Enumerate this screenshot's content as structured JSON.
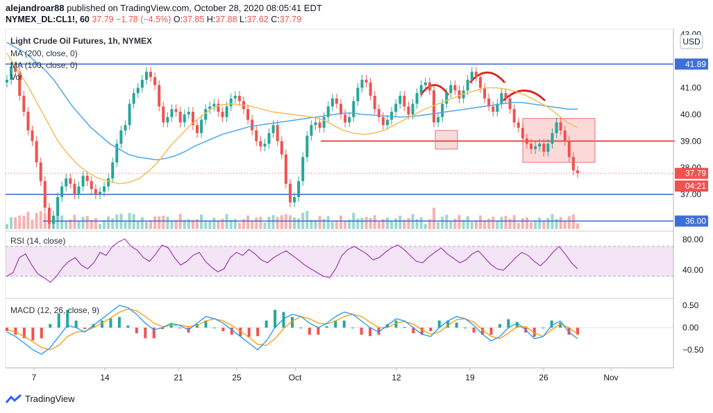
{
  "header": {
    "author": "alejandroar88",
    "published": "published on TradingView.com, October 28, 2020 08:05:41 EDT",
    "symbol": "NYMEX_DL:CL1!, 60",
    "last": "37.79",
    "change": "−1.78 (−4.5%)",
    "o_label": "O:",
    "o": "37.85",
    "h_label": "H:",
    "h": "37.88",
    "l_label": "L:",
    "l": "37.62",
    "c_label": "C:",
    "c": "37.79"
  },
  "legend": {
    "title": "Light Crude Oil Futures, 1h, NYMEX",
    "ma200": "MA (200, close, 0)",
    "ma100": "MA (100, close, 0)",
    "vol": "Vol"
  },
  "currency": "USD",
  "footer": {
    "brand": "TradingView"
  },
  "colors": {
    "up": "#26a69a",
    "down": "#ef5350",
    "ma200": "#4aa8e8",
    "ma100": "#f4be55",
    "level": "#3f6fd6",
    "neckline": "#e53935",
    "rsi": "#9c27b0",
    "macd": "#2196f3",
    "signal": "#ff9800"
  },
  "chart_data": [
    {
      "type": "line",
      "title": "Light Crude Oil Futures, 1h, NYMEX",
      "x_ticks": [
        "7",
        "14",
        "21",
        "25",
        "Oct",
        "12",
        "19",
        "26",
        "Nov"
      ],
      "y_ticks": [
        43.0,
        41.0,
        40.0,
        39.0,
        38.0,
        37.0
      ],
      "ylim": [
        35.7,
        43.2
      ],
      "price_labels": [
        {
          "label": "41.89",
          "value": 41.89,
          "kind": "level"
        },
        {
          "label": "37.79",
          "value": 37.79,
          "kind": "last"
        },
        {
          "label": "04:21",
          "value": 37.3,
          "kind": "countdown"
        },
        {
          "label": "36.00",
          "value": 36.0,
          "kind": "level"
        }
      ],
      "horizontal_levels": [
        41.89,
        37.0,
        36.0
      ],
      "neckline": 39.0,
      "close": [
        41.3,
        41.8,
        41.6,
        40.7,
        40.1,
        39.4,
        39.0,
        38.2,
        37.5,
        36.5,
        35.9,
        36.2,
        36.9,
        37.3,
        37.6,
        37.4,
        37.0,
        37.3,
        37.7,
        37.5,
        37.2,
        37.0,
        37.1,
        37.3,
        37.6,
        38.2,
        38.9,
        39.4,
        39.6,
        40.4,
        40.8,
        41.0,
        41.3,
        41.6,
        41.4,
        41.1,
        40.3,
        39.7,
        39.9,
        40.2,
        40.1,
        39.7,
        40.0,
        40.1,
        39.6,
        39.3,
        39.8,
        40.2,
        40.3,
        40.4,
        40.1,
        39.9,
        40.3,
        40.6,
        40.7,
        40.5,
        40.2,
        39.8,
        39.4,
        39.0,
        38.8,
        38.9,
        39.3,
        39.6,
        39.0,
        38.5,
        37.4,
        36.7,
        36.9,
        37.5,
        38.4,
        39.2,
        39.6,
        39.7,
        39.5,
        39.9,
        40.3,
        40.6,
        40.4,
        40.0,
        39.7,
        39.9,
        40.5,
        41.0,
        41.3,
        41.2,
        40.7,
        40.2,
        39.9,
        39.6,
        39.8,
        40.1,
        40.4,
        40.7,
        40.3,
        40.0,
        40.4,
        40.8,
        41.1,
        41.2,
        40.9,
        39.7,
        39.9,
        40.4,
        40.8,
        41.1,
        40.9,
        40.6,
        40.9,
        41.3,
        41.6,
        41.4,
        41.0,
        40.6,
        40.3,
        40.1,
        40.4,
        40.8,
        40.6,
        40.2,
        39.7,
        39.5,
        39.1,
        38.9,
        38.7,
        38.8,
        38.9,
        38.6,
        38.9,
        39.3,
        39.7,
        39.4,
        39.0,
        38.4,
        37.9,
        37.8
      ],
      "ma200": [
        42.7,
        42.5,
        42.3,
        42.0,
        41.7,
        41.3,
        40.8,
        40.3,
        39.9,
        39.5,
        39.2,
        38.9,
        38.7,
        38.5,
        38.4,
        38.35,
        38.3,
        38.35,
        38.45,
        38.6,
        38.8,
        38.95,
        39.1,
        39.25,
        39.35,
        39.45,
        39.55,
        39.6,
        39.65,
        39.7,
        39.75,
        39.8,
        39.85,
        39.9,
        39.95,
        40.0,
        40.05,
        40.05,
        40.0,
        39.98,
        39.95,
        39.93,
        39.9,
        39.92,
        39.95,
        40.0,
        40.05,
        40.1,
        40.15,
        40.2,
        40.25,
        40.3,
        40.35,
        40.4,
        40.45,
        40.45,
        40.4,
        40.35,
        40.3,
        40.25,
        40.2,
        40.2
      ],
      "ma100": [
        42.3,
        41.7,
        41.1,
        40.4,
        39.7,
        39.0,
        38.5,
        38.1,
        37.8,
        37.6,
        37.5,
        37.4,
        37.45,
        37.6,
        37.9,
        38.3,
        38.8,
        39.2,
        39.6,
        39.9,
        40.2,
        40.35,
        40.4,
        40.35,
        40.3,
        40.2,
        40.1,
        40.05,
        40.0,
        39.95,
        39.9,
        39.8,
        39.6,
        39.4,
        39.3,
        39.25,
        39.3,
        39.4,
        39.6,
        39.8,
        40.0,
        40.2,
        40.35,
        40.5,
        40.65,
        40.8,
        40.9,
        41.0,
        41.0,
        40.95,
        40.85,
        40.7,
        40.5,
        40.3,
        40.0,
        39.7,
        39.5
      ],
      "rsi": {
        "title": "RSI (14, close)",
        "y_ticks": [
          80.0,
          40.0
        ],
        "band": [
          70,
          30
        ],
        "values": [
          30,
          35,
          55,
          60,
          45,
          33,
          28,
          22,
          30,
          42,
          50,
          55,
          45,
          40,
          48,
          62,
          58,
          70,
          76,
          80,
          70,
          65,
          55,
          50,
          60,
          72,
          68,
          55,
          45,
          50,
          58,
          62,
          50,
          42,
          36,
          40,
          55,
          62,
          58,
          66,
          60,
          52,
          48,
          55,
          60,
          64,
          58,
          52,
          45,
          40,
          35,
          30,
          28,
          40,
          58,
          66,
          70,
          65,
          60,
          52,
          55,
          62,
          68,
          72,
          66,
          58,
          50,
          48,
          56,
          62,
          68,
          60,
          54,
          48,
          52,
          60,
          64,
          55,
          46,
          40,
          38,
          46,
          55,
          62,
          58,
          50,
          44,
          52,
          62,
          70,
          60,
          48,
          40
        ]
      },
      "macd": {
        "title": "MACD (12, 26, close, 9)",
        "y_ticks": [
          0.5,
          0.0,
          -0.5
        ],
        "macd": [
          -0.1,
          -0.2,
          -0.35,
          -0.5,
          -0.6,
          -0.45,
          -0.2,
          0.05,
          0.0,
          -0.1,
          0.05,
          0.2,
          0.35,
          0.5,
          0.45,
          0.3,
          0.1,
          -0.05,
          0.0,
          0.1,
          0.05,
          -0.05,
          0.1,
          0.25,
          0.2,
          0.1,
          -0.05,
          -0.2,
          -0.35,
          -0.5,
          -0.3,
          0.0,
          0.2,
          0.3,
          0.25,
          0.1,
          0.0,
          0.1,
          0.25,
          0.35,
          0.3,
          0.15,
          0.0,
          -0.1,
          0.05,
          0.2,
          0.15,
          0.0,
          -0.15,
          -0.2,
          0.0,
          0.15,
          0.25,
          0.2,
          0.05,
          -0.15,
          -0.3,
          -0.2,
          0.0,
          0.1,
          -0.05,
          -0.25,
          -0.2,
          0.05,
          0.15,
          -0.1,
          -0.25
        ],
        "signal": [
          -0.05,
          -0.1,
          -0.2,
          -0.32,
          -0.45,
          -0.5,
          -0.4,
          -0.2,
          -0.1,
          -0.08,
          0.0,
          0.1,
          0.22,
          0.35,
          0.42,
          0.38,
          0.25,
          0.1,
          0.02,
          0.05,
          0.06,
          0.02,
          0.05,
          0.15,
          0.2,
          0.15,
          0.05,
          -0.08,
          -0.22,
          -0.38,
          -0.4,
          -0.25,
          -0.02,
          0.15,
          0.25,
          0.2,
          0.1,
          0.08,
          0.15,
          0.25,
          0.3,
          0.25,
          0.12,
          0.0,
          0.0,
          0.1,
          0.14,
          0.08,
          -0.05,
          -0.15,
          -0.1,
          0.05,
          0.18,
          0.2,
          0.12,
          -0.05,
          -0.2,
          -0.25,
          -0.12,
          0.02,
          0.02,
          -0.12,
          -0.2,
          -0.05,
          0.08,
          0.0,
          -0.15
        ]
      }
    }
  ]
}
